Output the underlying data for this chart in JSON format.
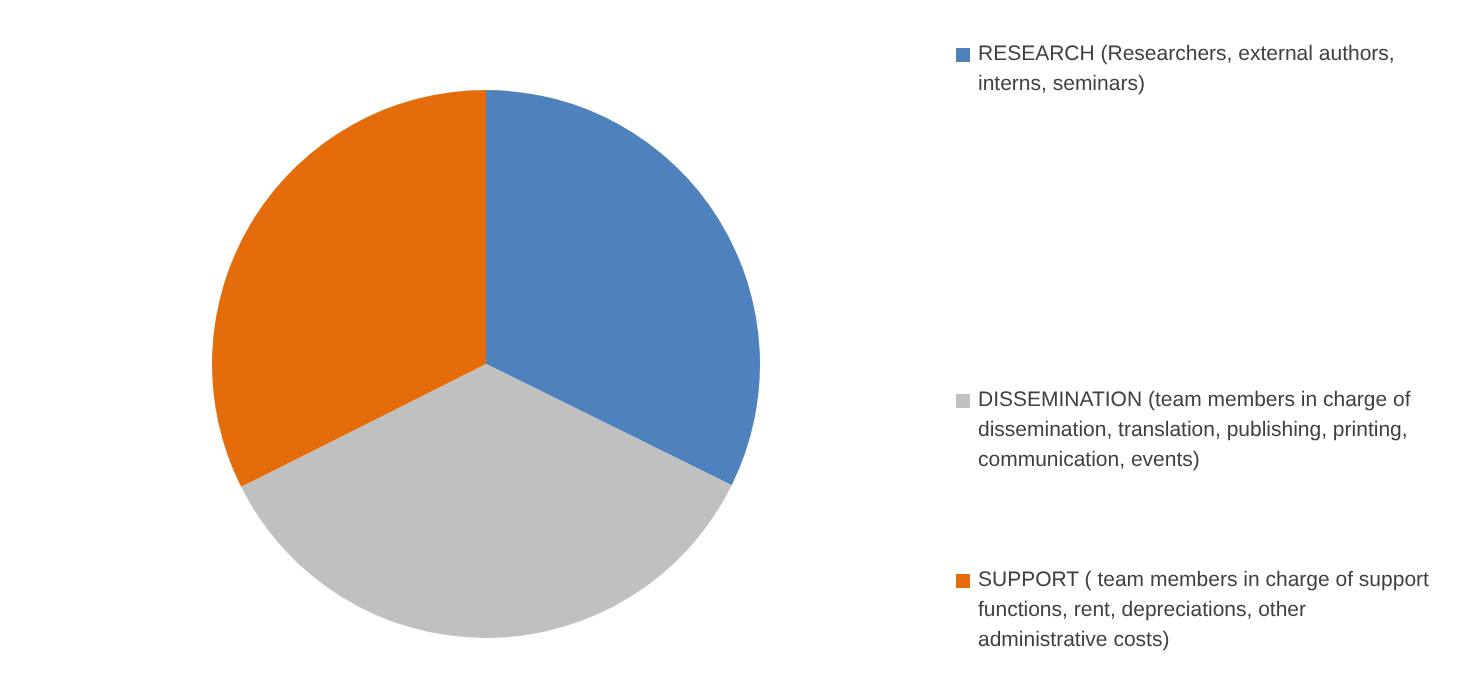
{
  "chart_data": {
    "type": "pie",
    "categories": [
      "RESEARCH (Researchers, external authors, interns, seminars)",
      "DISSEMINATION (team members in charge of dissemination, translation, publishing, printing, communication, events)",
      "SUPPORT ( team members in charge of support functions, rent, depreciations, other administrative costs)"
    ],
    "values": [
      32.3,
      35.3,
      32.4
    ],
    "colors": [
      "#4f81bd",
      "#c0c0c0",
      "#e46c0a"
    ],
    "legend": "right"
  }
}
